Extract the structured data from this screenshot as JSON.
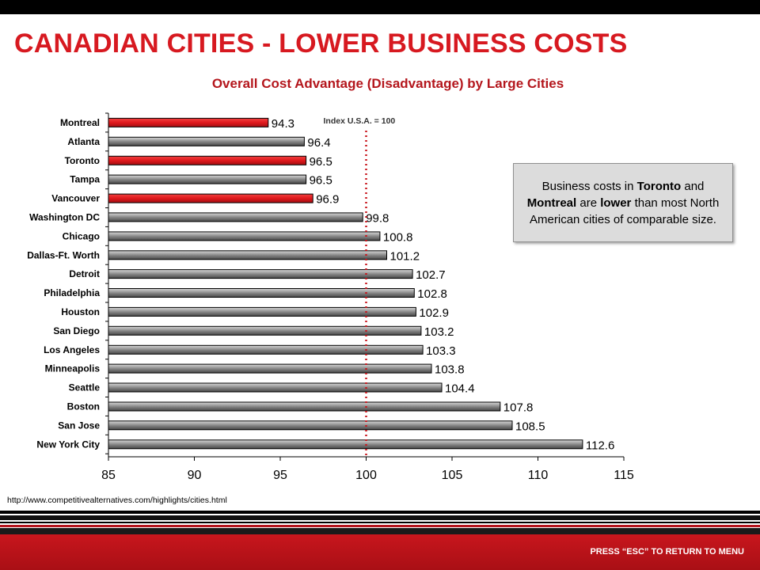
{
  "slide": {
    "title": "CANADIAN CITIES - LOWER BUSINESS COSTS",
    "source_url": "http://www.competitivealternatives.com/highlights/cities.html",
    "footer_text": "PRESS “ESC” TO RETURN TO MENU"
  },
  "callout": {
    "part1": "Business costs in ",
    "bold1": "Toronto",
    "part2": " and ",
    "bold2": "Montreal",
    "part3": " are ",
    "bold3": "lower",
    "part4": " than most North American cities of comparable size."
  },
  "colors": {
    "title": "#d71920",
    "canadian_bar": "#e0181c",
    "us_bar": "#8c8c8c",
    "reference_line": "#c8161d",
    "footer_bar": "#c8161d"
  },
  "chart_data": {
    "type": "bar",
    "orientation": "horizontal",
    "title": "Overall Cost Advantage (Disadvantage) by Large Cities",
    "reference_line": {
      "value": 100,
      "label": "Index U.S.A. = 100"
    },
    "xlim": [
      85,
      115
    ],
    "xticks": [
      "85",
      "90",
      "95",
      "100",
      "105",
      "110",
      "115"
    ],
    "categories": [
      "Montreal",
      "Atlanta",
      "Toronto",
      "Tampa",
      "Vancouver",
      "Washington DC",
      "Chicago",
      "Dallas-Ft. Worth",
      "Detroit",
      "Philadelphia",
      "Houston",
      "San Diego",
      "Los Angeles",
      "Minneapolis",
      "Seattle",
      "Boston",
      "San Jose",
      "New York City"
    ],
    "values": [
      94.3,
      96.4,
      96.5,
      96.5,
      96.9,
      99.8,
      100.8,
      101.2,
      102.7,
      102.8,
      102.9,
      103.2,
      103.3,
      103.8,
      104.4,
      107.8,
      108.5,
      112.6
    ],
    "value_labels": [
      "94.3",
      "96.4",
      "96.5",
      "96.5",
      "96.9",
      "99.8",
      "100.8",
      "101.2",
      "102.7",
      "102.8",
      "102.9",
      "103.2",
      "103.3",
      "103.8",
      "104.4",
      "107.8",
      "108.5",
      "112.6"
    ],
    "highlighted": [
      "Montreal",
      "Toronto",
      "Vancouver"
    ],
    "grid": false,
    "legend": "none"
  }
}
